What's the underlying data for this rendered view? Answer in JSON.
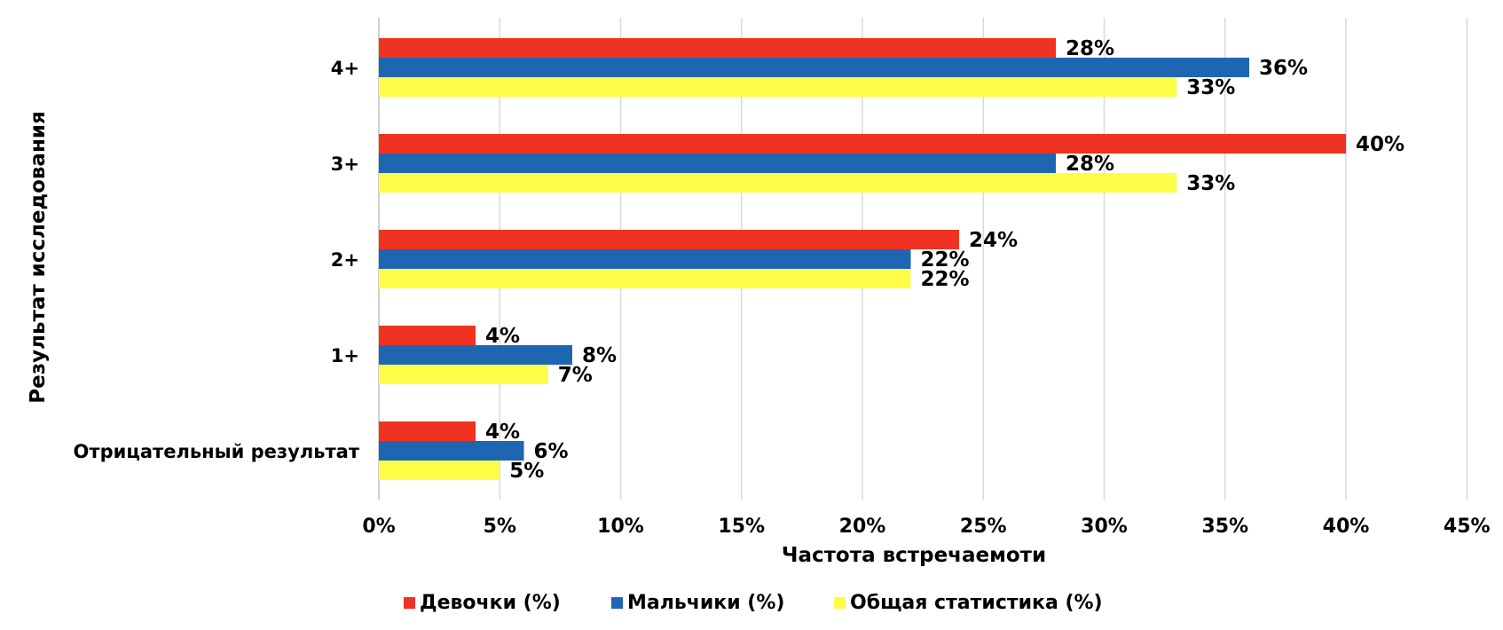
{
  "chart_data": {
    "type": "bar",
    "orientation": "horizontal",
    "categories": [
      "4+",
      "3+",
      "2+",
      "1+",
      "Отрицательный результат"
    ],
    "series": [
      {
        "name": "Девочки (%)",
        "color": "#f03222",
        "values": [
          28,
          40,
          24,
          4,
          4
        ]
      },
      {
        "name": "Мальчики (%)",
        "color": "#1f66b2",
        "values": [
          36,
          28,
          22,
          8,
          6
        ]
      },
      {
        "name": "Общая статистика (%)",
        "color": "#fdfc47",
        "values": [
          33,
          33,
          22,
          7,
          5
        ]
      }
    ],
    "xlabel": "Частота встречаемоти",
    "ylabel": "Результат исследования",
    "xlim": [
      0,
      45
    ],
    "xticks": [
      "0%",
      "5%",
      "10%",
      "15%",
      "20%",
      "25%",
      "30%",
      "35%",
      "40%",
      "45%"
    ],
    "value_suffix": "%",
    "grid": "vertical",
    "legend_position": "bottom"
  }
}
